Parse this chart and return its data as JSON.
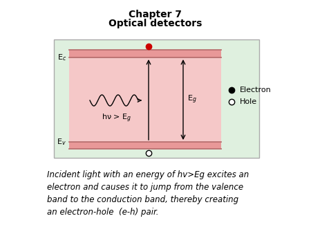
{
  "title_line1": "Chapter 7",
  "title_line2": "Optical detectors",
  "title_fontsize": 10,
  "title_fontweight": "bold",
  "bg_color": "#ffffff",
  "outer_box_facecolor": "#dff0df",
  "outer_box_edgecolor": "#aaaaaa",
  "inner_bg_color": "#f5c8c8",
  "band_fill_color": "#e89898",
  "band_line_color": "#b87070",
  "arrow_color": "#000000",
  "electron_color": "#cc0000",
  "Ec_label": "E$_c$",
  "Ev_label": "E$_v$",
  "Eg_label": "E$_g$",
  "hv_label": "hν > E$_g$",
  "electron_legend": "Electron",
  "hole_legend": "Hole",
  "caption": "Incident light with an energy of hv>Eg excites an\nelectron and causes it to jump from the valence\nband to the conduction band, thereby creating\nan electron-hole  (e-h) pair.",
  "caption_fontsize": 8.5,
  "label_fontsize": 8,
  "legend_fontsize": 8
}
